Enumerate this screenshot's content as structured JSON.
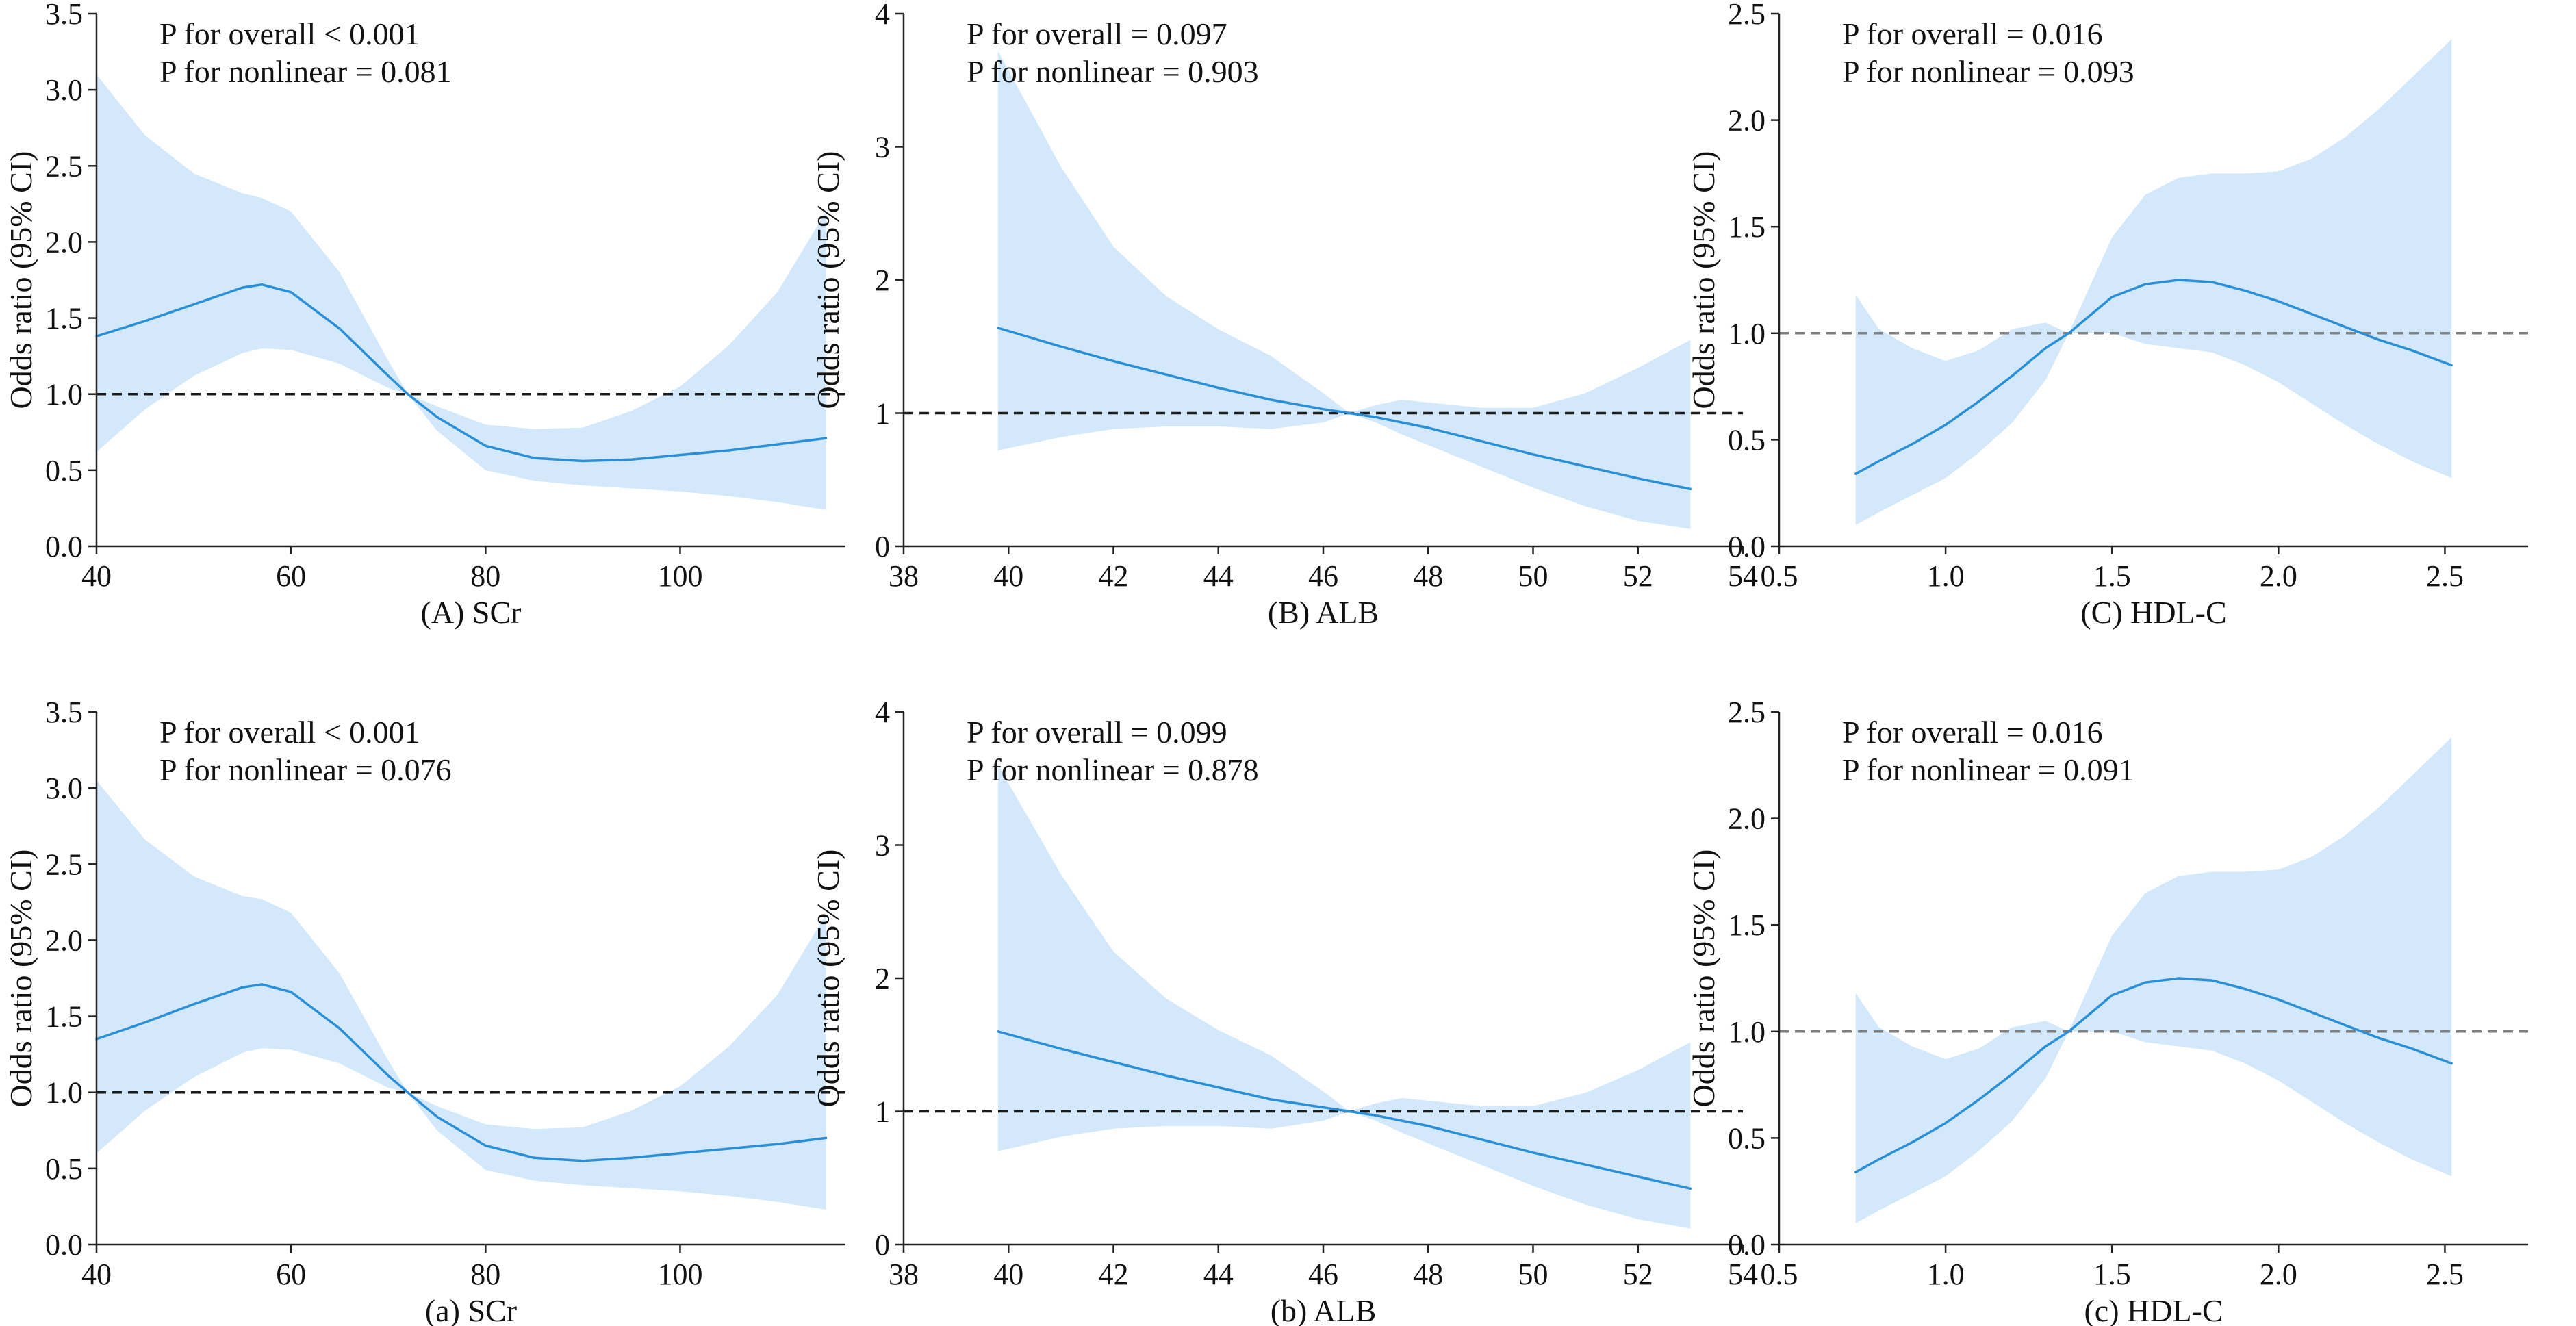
{
  "figure": {
    "layout": "2 rows x 3 columns",
    "style": {
      "line_color": "#2a8fd6",
      "band_color": "#d3e9fb",
      "reference_color": "#1a1a1a",
      "reference_color_faint": "#7f7f7f",
      "axis_color": "#222222"
    }
  },
  "chart_data": [
    {
      "type": "line",
      "title": "",
      "xlabel": "(A) SCr",
      "ylabel": "Odds ratio (95% CI)",
      "xlim": [
        40,
        117
      ],
      "ylim": [
        0,
        3.5
      ],
      "xticks": [
        40,
        60,
        80,
        100
      ],
      "xtick_labels": [
        "40",
        "60",
        "80",
        "100"
      ],
      "yticks": [
        0,
        0.5,
        1,
        1.5,
        2,
        2.5,
        3,
        3.5
      ],
      "ytick_labels": [
        "0.0",
        "0.5",
        "1.0",
        "1.5",
        "2.0",
        "2.5",
        "3.0",
        "3.5"
      ],
      "reference_y": 1.0,
      "annotations": [
        "P for overall < 0.001",
        "P for nonlinear = 0.081"
      ],
      "series": [
        {
          "name": "Odds ratio",
          "x": [
            40,
            45,
            50,
            55,
            57,
            60,
            65,
            70,
            72,
            75,
            80,
            85,
            90,
            95,
            100,
            105,
            110,
            115
          ],
          "y": [
            1.38,
            1.48,
            1.59,
            1.7,
            1.72,
            1.67,
            1.43,
            1.12,
            1.0,
            0.85,
            0.66,
            0.58,
            0.56,
            0.57,
            0.6,
            0.63,
            0.67,
            0.71
          ],
          "lower": [
            0.62,
            0.9,
            1.12,
            1.27,
            1.3,
            1.29,
            1.2,
            1.04,
            1.0,
            0.76,
            0.5,
            0.43,
            0.4,
            0.38,
            0.36,
            0.33,
            0.29,
            0.24
          ],
          "upper": [
            3.1,
            2.7,
            2.45,
            2.32,
            2.29,
            2.2,
            1.8,
            1.22,
            1.0,
            0.92,
            0.8,
            0.77,
            0.78,
            0.89,
            1.05,
            1.32,
            1.67,
            2.2
          ]
        }
      ]
    },
    {
      "type": "line",
      "title": "",
      "xlabel": "(B) ALB",
      "ylabel": "Odds ratio (95% CI)",
      "xlim": [
        38,
        54
      ],
      "ylim": [
        0,
        4
      ],
      "xticks": [
        38,
        40,
        42,
        44,
        46,
        48,
        50,
        52,
        54
      ],
      "xtick_labels": [
        "38",
        "40",
        "42",
        "44",
        "46",
        "48",
        "50",
        "52",
        "54"
      ],
      "yticks": [
        0,
        1,
        2,
        3,
        4
      ],
      "ytick_labels": [
        "0",
        "1",
        "2",
        "3",
        "4"
      ],
      "reference_y": 1.0,
      "annotations": [
        "P for overall = 0.097",
        "P for nonlinear = 0.903"
      ],
      "series": [
        {
          "name": "Odds ratio",
          "x": [
            39.8,
            41,
            42,
            43,
            44,
            45,
            46,
            46.5,
            47,
            47.5,
            48,
            49,
            50,
            51,
            52,
            53
          ],
          "y": [
            1.64,
            1.5,
            1.39,
            1.29,
            1.19,
            1.1,
            1.03,
            1.0,
            0.97,
            0.93,
            0.89,
            0.79,
            0.69,
            0.6,
            0.51,
            0.43
          ],
          "lower": [
            0.72,
            0.82,
            0.88,
            0.9,
            0.9,
            0.88,
            0.93,
            1.0,
            0.93,
            0.84,
            0.76,
            0.6,
            0.44,
            0.3,
            0.19,
            0.13
          ],
          "upper": [
            3.72,
            2.85,
            2.25,
            1.88,
            1.63,
            1.43,
            1.15,
            1.0,
            1.06,
            1.1,
            1.08,
            1.04,
            1.04,
            1.15,
            1.34,
            1.55
          ]
        }
      ]
    },
    {
      "type": "line",
      "title": "",
      "xlabel": "(C) HDL-C",
      "ylabel": "Odds ratio (95% CI)",
      "xlim": [
        0.5,
        2.75
      ],
      "ylim": [
        0,
        2.5
      ],
      "xticks": [
        0.5,
        1.0,
        1.5,
        2.0,
        2.5
      ],
      "xtick_labels": [
        "0.5",
        "1.0",
        "1.5",
        "2.0",
        "2.5"
      ],
      "yticks": [
        0,
        0.5,
        1,
        1.5,
        2,
        2.5
      ],
      "ytick_labels": [
        "0.0",
        "0.5",
        "1.0",
        "1.5",
        "2.0",
        "2.5"
      ],
      "reference_y": 1.0,
      "annotations": [
        "P for overall = 0.016",
        "P for nonlinear = 0.093"
      ],
      "series": [
        {
          "name": "Odds ratio",
          "x": [
            0.73,
            0.8,
            0.9,
            1.0,
            1.1,
            1.2,
            1.3,
            1.37,
            1.5,
            1.6,
            1.7,
            1.8,
            1.9,
            2.0,
            2.1,
            2.2,
            2.3,
            2.4,
            2.52
          ],
          "y": [
            0.34,
            0.4,
            0.48,
            0.57,
            0.68,
            0.8,
            0.93,
            1.0,
            1.17,
            1.23,
            1.25,
            1.24,
            1.2,
            1.15,
            1.09,
            1.03,
            0.97,
            0.92,
            0.85
          ],
          "lower": [
            0.1,
            0.16,
            0.24,
            0.32,
            0.44,
            0.58,
            0.78,
            1.0,
            1.0,
            0.95,
            0.93,
            0.91,
            0.85,
            0.77,
            0.67,
            0.57,
            0.48,
            0.4,
            0.32
          ],
          "upper": [
            1.18,
            1.02,
            0.93,
            0.87,
            0.92,
            1.02,
            1.05,
            1.0,
            1.45,
            1.65,
            1.73,
            1.75,
            1.75,
            1.76,
            1.82,
            1.92,
            2.05,
            2.2,
            2.38
          ]
        }
      ]
    },
    {
      "type": "line",
      "title": "",
      "xlabel": "(a) SCr",
      "ylabel": "Odds ratio (95% CI)",
      "xlim": [
        40,
        117
      ],
      "ylim": [
        0,
        3.5
      ],
      "xticks": [
        40,
        60,
        80,
        100
      ],
      "xtick_labels": [
        "40",
        "60",
        "80",
        "100"
      ],
      "yticks": [
        0,
        0.5,
        1,
        1.5,
        2,
        2.5,
        3,
        3.5
      ],
      "ytick_labels": [
        "0.0",
        "0.5",
        "1.0",
        "1.5",
        "2.0",
        "2.5",
        "3.0",
        "3.5"
      ],
      "reference_y": 1.0,
      "annotations": [
        "P for overall < 0.001",
        "P for nonlinear = 0.076"
      ],
      "series": [
        {
          "name": "Odds ratio",
          "x": [
            40,
            45,
            50,
            55,
            57,
            60,
            65,
            70,
            72,
            75,
            80,
            85,
            90,
            95,
            100,
            105,
            110,
            115
          ],
          "y": [
            1.35,
            1.46,
            1.58,
            1.69,
            1.71,
            1.66,
            1.42,
            1.11,
            1.0,
            0.84,
            0.65,
            0.57,
            0.55,
            0.57,
            0.6,
            0.63,
            0.66,
            0.7
          ],
          "lower": [
            0.6,
            0.88,
            1.1,
            1.26,
            1.29,
            1.28,
            1.19,
            1.03,
            1.0,
            0.75,
            0.49,
            0.42,
            0.39,
            0.37,
            0.35,
            0.32,
            0.28,
            0.23
          ],
          "upper": [
            3.05,
            2.66,
            2.42,
            2.29,
            2.27,
            2.18,
            1.78,
            1.21,
            1.0,
            0.91,
            0.79,
            0.76,
            0.77,
            0.88,
            1.04,
            1.3,
            1.64,
            2.17
          ]
        }
      ]
    },
    {
      "type": "line",
      "title": "",
      "xlabel": "(b) ALB",
      "ylabel": "Odds ratio (95% CI)",
      "xlim": [
        38,
        54
      ],
      "ylim": [
        0,
        4
      ],
      "xticks": [
        38,
        40,
        42,
        44,
        46,
        48,
        50,
        52,
        54
      ],
      "xtick_labels": [
        "38",
        "40",
        "42",
        "44",
        "46",
        "48",
        "50",
        "52",
        "54"
      ],
      "yticks": [
        0,
        1,
        2,
        3,
        4
      ],
      "ytick_labels": [
        "0",
        "1",
        "2",
        "3",
        "4"
      ],
      "reference_y": 1.0,
      "annotations": [
        "P for overall = 0.099",
        "P for nonlinear = 0.878"
      ],
      "series": [
        {
          "name": "Odds ratio",
          "x": [
            39.8,
            41,
            42,
            43,
            44,
            45,
            46,
            46.5,
            47,
            47.5,
            48,
            49,
            50,
            51,
            52,
            53
          ],
          "y": [
            1.6,
            1.47,
            1.37,
            1.27,
            1.18,
            1.09,
            1.03,
            1.0,
            0.97,
            0.93,
            0.89,
            0.79,
            0.69,
            0.6,
            0.51,
            0.42
          ],
          "lower": [
            0.7,
            0.81,
            0.87,
            0.89,
            0.89,
            0.87,
            0.93,
            1.0,
            0.93,
            0.84,
            0.76,
            0.6,
            0.44,
            0.3,
            0.19,
            0.12
          ],
          "upper": [
            3.6,
            2.78,
            2.2,
            1.85,
            1.61,
            1.42,
            1.15,
            1.0,
            1.06,
            1.1,
            1.08,
            1.04,
            1.04,
            1.14,
            1.31,
            1.52
          ]
        }
      ]
    },
    {
      "type": "line",
      "title": "",
      "xlabel": "(c) HDL-C",
      "ylabel": "Odds ratio (95% CI)",
      "xlim": [
        0.5,
        2.75
      ],
      "ylim": [
        0,
        2.5
      ],
      "xticks": [
        0.5,
        1.0,
        1.5,
        2.0,
        2.5
      ],
      "xtick_labels": [
        "0.5",
        "1.0",
        "1.5",
        "2.0",
        "2.5"
      ],
      "yticks": [
        0,
        0.5,
        1,
        1.5,
        2,
        2.5
      ],
      "ytick_labels": [
        "0.0",
        "0.5",
        "1.0",
        "1.5",
        "2.0",
        "2.5"
      ],
      "reference_y": 1.0,
      "annotations": [
        "P for overall = 0.016",
        "P for nonlinear = 0.091"
      ],
      "series": [
        {
          "name": "Odds ratio",
          "x": [
            0.73,
            0.8,
            0.9,
            1.0,
            1.1,
            1.2,
            1.3,
            1.37,
            1.5,
            1.6,
            1.7,
            1.8,
            1.9,
            2.0,
            2.1,
            2.2,
            2.3,
            2.4,
            2.52
          ],
          "y": [
            0.34,
            0.4,
            0.48,
            0.57,
            0.68,
            0.8,
            0.93,
            1.0,
            1.17,
            1.23,
            1.25,
            1.24,
            1.2,
            1.15,
            1.09,
            1.03,
            0.97,
            0.92,
            0.85
          ],
          "lower": [
            0.1,
            0.16,
            0.24,
            0.32,
            0.44,
            0.58,
            0.78,
            1.0,
            1.0,
            0.95,
            0.93,
            0.91,
            0.85,
            0.77,
            0.67,
            0.57,
            0.48,
            0.4,
            0.32
          ],
          "upper": [
            1.18,
            1.02,
            0.93,
            0.87,
            0.92,
            1.02,
            1.05,
            1.0,
            1.45,
            1.65,
            1.73,
            1.75,
            1.75,
            1.76,
            1.82,
            1.92,
            2.05,
            2.2,
            2.38
          ]
        }
      ]
    }
  ]
}
